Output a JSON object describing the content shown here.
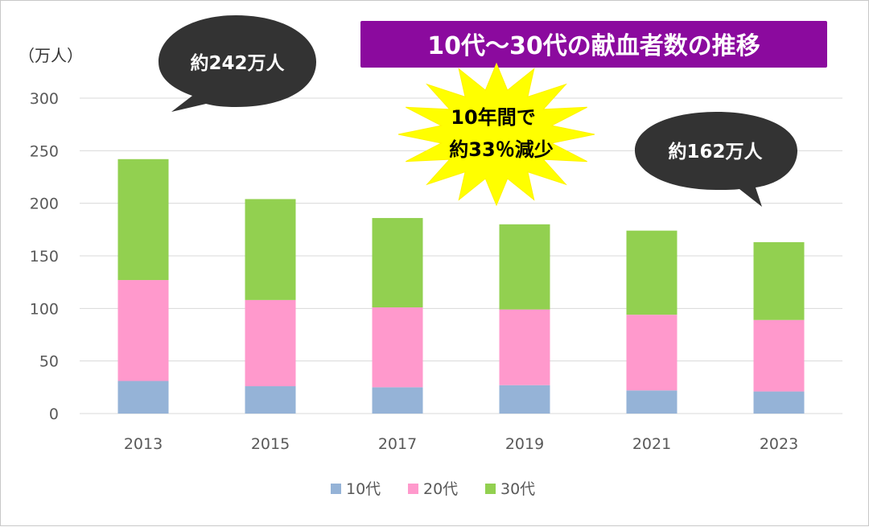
{
  "chart_data": {
    "type": "bar",
    "stacked": true,
    "title": "10代～30代の献血者数の推移",
    "unit_label": "（万人）",
    "categories": [
      "2013",
      "2015",
      "2017",
      "2019",
      "2021",
      "2023"
    ],
    "series": [
      {
        "name": "10代",
        "color": "#95b3d7",
        "values": [
          31,
          26,
          25,
          27,
          22,
          21
        ]
      },
      {
        "name": "20代",
        "color": "#ff99cc",
        "values": [
          96,
          82,
          76,
          72,
          72,
          68
        ]
      },
      {
        "name": "30代",
        "color": "#92d050",
        "values": [
          115,
          96,
          85,
          81,
          80,
          74
        ]
      }
    ],
    "ylim": [
      0,
      300
    ],
    "yticks": [
      0,
      50,
      100,
      150,
      200,
      250,
      300
    ],
    "grid": true,
    "legend_position": "bottom",
    "annotations": {
      "burst_line1": "10年間で",
      "burst_line2": "約33％減少",
      "bubble_left": "約242万人",
      "bubble_right": "約162万人"
    },
    "colors": {
      "title_bg": "#8b0a9e",
      "burst_fill": "#ffff00",
      "bubble_fill": "#333333"
    }
  }
}
